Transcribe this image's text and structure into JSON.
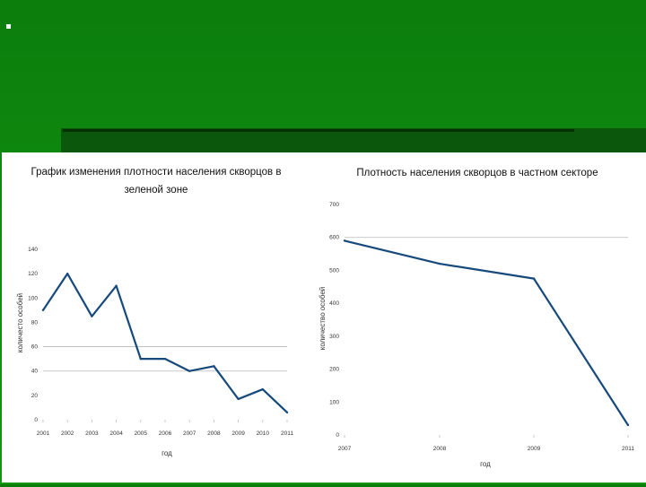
{
  "chart_data": [
    {
      "type": "line",
      "title_line1": "График изменения плотности населения скворцов в",
      "title_line2": "зеленой зоне",
      "xlabel": "год",
      "ylabel": "количесто особей",
      "categories": [
        "2001",
        "2002",
        "2003",
        "2004",
        "2005",
        "2006",
        "2007",
        "2008",
        "2009",
        "2010",
        "2011"
      ],
      "values": [
        90,
        120,
        85,
        110,
        50,
        50,
        40,
        44,
        17,
        25,
        6
      ],
      "ylim": [
        0,
        140
      ],
      "yticks": [
        "0",
        "20",
        "40",
        "60",
        "80",
        "100",
        "120",
        "140"
      ],
      "grid_values": [
        40,
        60
      ]
    },
    {
      "type": "line",
      "title_line1": "Плотность населения скворцов в частном секторе",
      "xlabel": "год",
      "ylabel": "количество особей",
      "categories": [
        "2007",
        "2008",
        "2009",
        "2011"
      ],
      "values": [
        590,
        520,
        475,
        30
      ],
      "ylim": [
        0,
        700
      ],
      "yticks": [
        "0",
        "100",
        "200",
        "300",
        "400",
        "500",
        "600",
        "700"
      ],
      "grid_values": [
        600
      ]
    }
  ]
}
